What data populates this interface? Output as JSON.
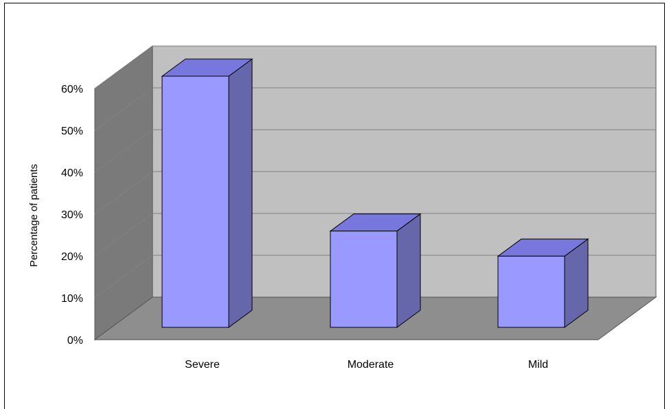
{
  "chart_data": {
    "type": "bar",
    "title": "",
    "xlabel": "",
    "ylabel": "Percentage of patients",
    "categories": [
      "Severe",
      "Moderate",
      "Mild"
    ],
    "values": [
      60,
      23,
      17
    ],
    "ylim": [
      0,
      60
    ],
    "yticks": [
      "0%",
      "10%",
      "20%",
      "30%",
      "40%",
      "50%",
      "60%"
    ],
    "grid": true,
    "legend": "none",
    "style": "3d",
    "colors": {
      "bar_front": "#9999ff",
      "bar_top": "#7777dd",
      "bar_side": "#6666aa",
      "back_wall": "#c0c0c0",
      "side_wall": "#7a7a7a",
      "floor": "#8e8e8e",
      "gridline": "#808080"
    }
  }
}
